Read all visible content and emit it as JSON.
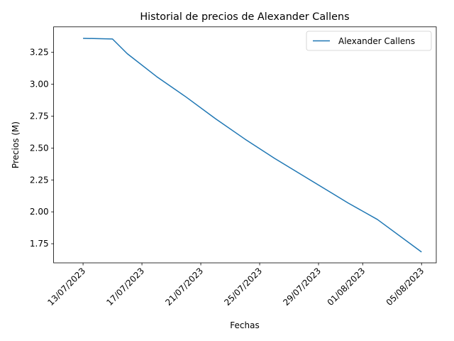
{
  "chart_data": {
    "type": "line",
    "title": "Historial de precios de Alexander Callens",
    "xlabel": "Fechas",
    "ylabel": "Precios (M)",
    "x": [
      "13/07/2023",
      "15/07/2023",
      "16/07/2023",
      "18/07/2023",
      "20/07/2023",
      "22/07/2023",
      "24/07/2023",
      "26/07/2023",
      "28/07/2023",
      "30/07/2023",
      "31/07/2023",
      "02/08/2023",
      "05/08/2023"
    ],
    "series": [
      {
        "name": "Alexander Callens",
        "color": "#1f77b4",
        "values": [
          3.36,
          3.355,
          3.24,
          3.06,
          2.9,
          2.73,
          2.57,
          2.42,
          2.28,
          2.14,
          2.07,
          1.94,
          1.685
        ]
      }
    ],
    "xticks": [
      "13/07/2023",
      "17/07/2023",
      "21/07/2023",
      "25/07/2023",
      "29/07/2023",
      "01/08/2023",
      "05/08/2023"
    ],
    "yticks": [
      1.75,
      2.0,
      2.25,
      2.5,
      2.75,
      3.0,
      3.25
    ],
    "ytick_labels": [
      "1.75",
      "2.00",
      "2.25",
      "2.50",
      "2.75",
      "3.00",
      "3.25"
    ],
    "xlim": [
      "11/07/2023",
      "06/08/2023"
    ],
    "ylim": [
      1.6,
      3.45
    ],
    "legend": "top-right",
    "grid": false
  }
}
